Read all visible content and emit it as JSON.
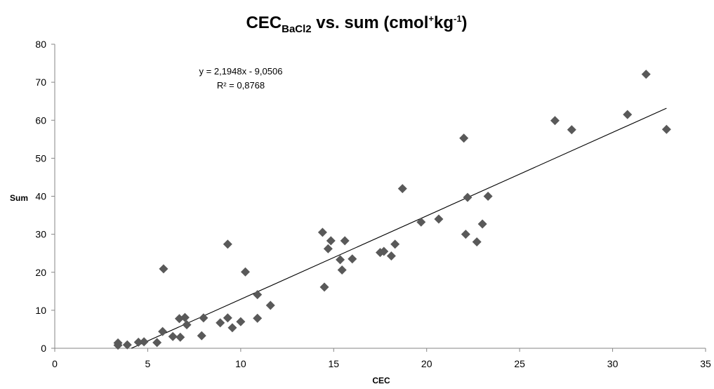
{
  "chart_data": {
    "type": "scatter",
    "title": {
      "prefix": "CEC",
      "subscript": "BaCl2",
      "middle": " vs. sum (cmol",
      "sup1": "+",
      "kg": "kg",
      "sup2": "-1",
      "suffix": ")"
    },
    "xlabel": "CEC",
    "ylabel": "Sum",
    "xlim": [
      0,
      35
    ],
    "ylim": [
      0,
      80
    ],
    "xticks": [
      "0",
      "5",
      "10",
      "15",
      "20",
      "25",
      "30",
      "35"
    ],
    "yticks": [
      "0",
      "10",
      "20",
      "30",
      "40",
      "50",
      "60",
      "70",
      "80"
    ],
    "grid": false,
    "marker_color": "#595959",
    "line_color": "#000000",
    "trendline": {
      "equation": "y = 2,1948x - 9,0506",
      "r2": "R² = 0,8768",
      "slope": 2.1948,
      "intercept": -9.0506,
      "x_range": [
        4.12,
        32.9
      ]
    },
    "points": [
      [
        3.4,
        0.8
      ],
      [
        3.4,
        1.4
      ],
      [
        3.9,
        0.9
      ],
      [
        4.5,
        1.6
      ],
      [
        4.8,
        1.7
      ],
      [
        5.5,
        1.5
      ],
      [
        5.8,
        4.4
      ],
      [
        5.85,
        20.9
      ],
      [
        6.35,
        3.1
      ],
      [
        6.7,
        7.8
      ],
      [
        6.75,
        2.9
      ],
      [
        7.0,
        8.1
      ],
      [
        7.1,
        6.2
      ],
      [
        7.9,
        3.3
      ],
      [
        8.0,
        8.0
      ],
      [
        8.9,
        6.7
      ],
      [
        9.3,
        8.0
      ],
      [
        9.3,
        27.4
      ],
      [
        9.55,
        5.4
      ],
      [
        10.0,
        7.0
      ],
      [
        10.25,
        20.1
      ],
      [
        10.9,
        14.1
      ],
      [
        10.9,
        7.9
      ],
      [
        11.6,
        11.3
      ],
      [
        14.4,
        30.5
      ],
      [
        14.5,
        16.1
      ],
      [
        14.7,
        26.2
      ],
      [
        14.85,
        28.3
      ],
      [
        15.35,
        23.3
      ],
      [
        15.45,
        20.6
      ],
      [
        15.6,
        28.3
      ],
      [
        16.0,
        23.5
      ],
      [
        17.5,
        25.2
      ],
      [
        17.7,
        25.5
      ],
      [
        18.1,
        24.3
      ],
      [
        18.3,
        27.4
      ],
      [
        18.7,
        42.0
      ],
      [
        19.7,
        33.2
      ],
      [
        20.65,
        34.0
      ],
      [
        22.0,
        55.3
      ],
      [
        22.1,
        30.0
      ],
      [
        22.2,
        39.7
      ],
      [
        22.7,
        28.0
      ],
      [
        23.0,
        32.7
      ],
      [
        23.3,
        40.0
      ],
      [
        26.9,
        59.9
      ],
      [
        27.8,
        57.5
      ],
      [
        30.8,
        61.5
      ],
      [
        31.8,
        72.1
      ],
      [
        32.9,
        57.6
      ]
    ]
  }
}
